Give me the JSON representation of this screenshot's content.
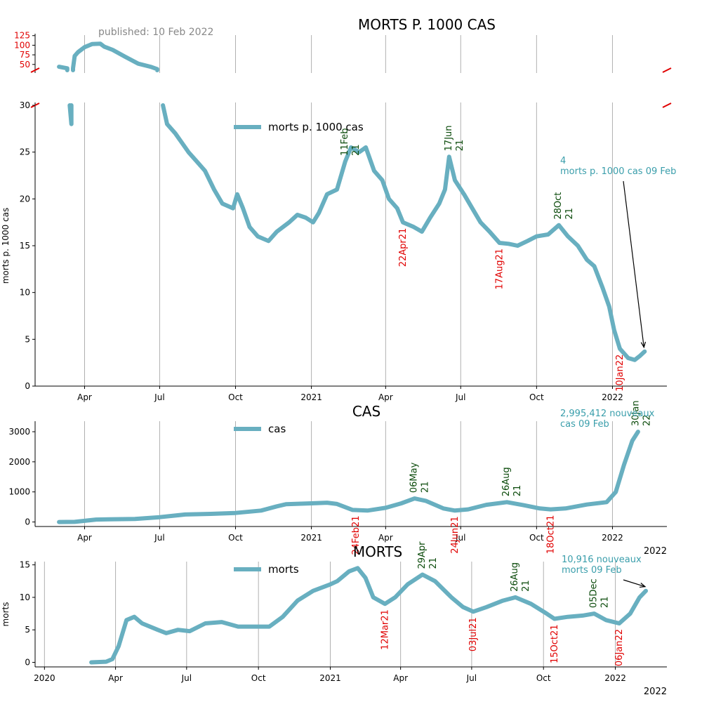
{
  "published": "published: 10 Feb 2022",
  "colors": {
    "line": "#68afc0",
    "peak": "#0a4a0a",
    "trough": "#e00000",
    "annotation": "#3a9eab",
    "tick": "#000000",
    "grid": "#b0b0b0",
    "inset_tick": "#e00000"
  },
  "chart_data": [
    {
      "id": "deaths_per_1000",
      "type": "line",
      "title": "MORTS P. 1000 CAS",
      "ylabel": "morts p. 1000 cas",
      "legend": "morts p. 1000 cas",
      "legend_placement": "top-center",
      "grid": "vertical",
      "broken_axis": true,
      "ylim_lower": [
        0,
        30
      ],
      "ylim_upper": [
        35,
        130
      ],
      "yticks_lower": [
        "0",
        "5",
        "10",
        "15",
        "20",
        "25",
        "30"
      ],
      "yticks_upper": [
        "50",
        "75",
        "100",
        "125"
      ],
      "xlim": [
        "2020-02-01",
        "2022-03-08"
      ],
      "xticks": [
        {
          "date": "2020-04-01",
          "label": "Apr"
        },
        {
          "date": "2020-07-01",
          "label": "Jul"
        },
        {
          "date": "2020-10-01",
          "label": "Oct"
        },
        {
          "date": "2021-01-01",
          "label": "2021"
        },
        {
          "date": "2021-04-01",
          "label": "Apr"
        },
        {
          "date": "2021-07-01",
          "label": "Jul"
        },
        {
          "date": "2021-10-01",
          "label": "Oct"
        },
        {
          "date": "2022-01-01",
          "label": "2022"
        }
      ],
      "series": [
        {
          "points": [
            [
              "2020-03-01",
              44
            ],
            [
              "2020-03-06",
              42
            ],
            [
              "2020-03-11",
              40
            ],
            [
              "2020-03-14",
              30
            ],
            [
              "2020-03-16",
              28
            ],
            [
              "2020-03-18",
              40
            ],
            [
              "2020-03-20",
              72
            ],
            [
              "2020-03-24",
              82
            ],
            [
              "2020-04-01",
              95
            ],
            [
              "2020-04-10",
              103
            ],
            [
              "2020-04-20",
              104
            ],
            [
              "2020-04-25",
              96
            ],
            [
              "2020-05-05",
              88
            ],
            [
              "2020-05-20",
              70
            ],
            [
              "2020-06-05",
              52
            ],
            [
              "2020-06-20",
              44
            ],
            [
              "2020-06-28",
              38
            ],
            [
              "2020-07-05",
              30
            ],
            [
              "2020-07-10",
              28
            ],
            [
              "2020-07-20",
              27
            ],
            [
              "2020-07-28",
              26
            ],
            [
              "2020-08-05",
              25
            ],
            [
              "2020-08-15",
              24
            ],
            [
              "2020-08-25",
              23
            ],
            [
              "2020-09-05",
              21
            ],
            [
              "2020-09-15",
              19.5
            ],
            [
              "2020-09-28",
              19
            ],
            [
              "2020-10-03",
              20.5
            ],
            [
              "2020-10-10",
              19
            ],
            [
              "2020-10-18",
              17
            ],
            [
              "2020-10-28",
              16
            ],
            [
              "2020-11-10",
              15.5
            ],
            [
              "2020-11-20",
              16.5
            ],
            [
              "2020-12-05",
              17.5
            ],
            [
              "2020-12-15",
              18.3
            ],
            [
              "2020-12-25",
              18
            ],
            [
              "2021-01-03",
              17.5
            ],
            [
              "2021-01-10",
              18.5
            ],
            [
              "2021-01-20",
              20.5
            ],
            [
              "2021-02-01",
              21
            ],
            [
              "2021-02-11",
              24
            ],
            [
              "2021-02-18",
              25.5
            ],
            [
              "2021-02-28",
              25
            ],
            [
              "2021-03-08",
              25.5
            ],
            [
              "2021-03-18",
              23
            ],
            [
              "2021-03-28",
              22
            ],
            [
              "2021-04-05",
              20
            ],
            [
              "2021-04-15",
              19
            ],
            [
              "2021-04-22",
              17.5
            ],
            [
              "2021-05-05",
              17
            ],
            [
              "2021-05-15",
              16.5
            ],
            [
              "2021-05-25",
              18
            ],
            [
              "2021-06-05",
              19.5
            ],
            [
              "2021-06-12",
              21
            ],
            [
              "2021-06-17",
              24.5
            ],
            [
              "2021-06-24",
              22
            ],
            [
              "2021-07-05",
              20.5
            ],
            [
              "2021-07-15",
              19
            ],
            [
              "2021-07-25",
              17.5
            ],
            [
              "2021-08-05",
              16.5
            ],
            [
              "2021-08-17",
              15.3
            ],
            [
              "2021-08-28",
              15.2
            ],
            [
              "2021-09-08",
              15
            ],
            [
              "2021-09-20",
              15.5
            ],
            [
              "2021-10-01",
              16
            ],
            [
              "2021-10-15",
              16.2
            ],
            [
              "2021-10-28",
              17.2
            ],
            [
              "2021-11-08",
              16
            ],
            [
              "2021-11-20",
              15
            ],
            [
              "2021-12-01",
              13.5
            ],
            [
              "2021-12-10",
              12.8
            ],
            [
              "2021-12-20",
              10.5
            ],
            [
              "2021-12-28",
              8.5
            ],
            [
              "2022-01-03",
              6
            ],
            [
              "2022-01-10",
              4
            ],
            [
              "2022-01-20",
              3
            ],
            [
              "2022-01-28",
              2.8
            ],
            [
              "2022-02-03",
              3.2
            ],
            [
              "2022-02-09",
              3.7
            ]
          ]
        }
      ],
      "peaks": [
        {
          "date": "2021-02-11",
          "label": "11Feb",
          "year": "21"
        },
        {
          "date": "2021-06-17",
          "label": "17Jun",
          "year": "21"
        },
        {
          "date": "2021-10-28",
          "label": "28Oct",
          "year": "21"
        }
      ],
      "troughs": [
        {
          "date": "2021-04-22",
          "label": "22Apr21"
        },
        {
          "date": "2021-08-17",
          "label": "17Aug21"
        },
        {
          "date": "2022-01-10",
          "label": "10Jan22"
        }
      ],
      "annotation": {
        "line1": "4",
        "line2": "morts p. 1000 cas 09 Feb"
      }
    },
    {
      "id": "cases",
      "type": "line",
      "title": "CAS",
      "legend": "cas",
      "legend_placement": "top-center",
      "grid": "vertical",
      "ylim": [
        -150,
        3350
      ],
      "yticks": [
        "0",
        "1000",
        "2000",
        "3000"
      ],
      "xlim": [
        "2020-02-01",
        "2022-03-08"
      ],
      "xticks": [
        {
          "date": "2020-04-01",
          "label": "Apr"
        },
        {
          "date": "2020-07-01",
          "label": "Jul"
        },
        {
          "date": "2020-10-01",
          "label": "Oct"
        },
        {
          "date": "2021-01-01",
          "label": "2021"
        },
        {
          "date": "2021-04-01",
          "label": "Apr"
        },
        {
          "date": "2021-07-01",
          "label": "Jul"
        },
        {
          "date": "2021-10-01",
          "label": "Oct"
        },
        {
          "date": "2022-01-01",
          "label": "2022"
        }
      ],
      "year_label": "2022",
      "series": [
        {
          "points": [
            [
              "2020-03-01",
              0
            ],
            [
              "2020-03-20",
              5
            ],
            [
              "2020-04-01",
              40
            ],
            [
              "2020-04-15",
              80
            ],
            [
              "2020-05-01",
              90
            ],
            [
              "2020-06-01",
              100
            ],
            [
              "2020-07-01",
              160
            ],
            [
              "2020-08-01",
              250
            ],
            [
              "2020-09-01",
              270
            ],
            [
              "2020-10-01",
              300
            ],
            [
              "2020-11-01",
              380
            ],
            [
              "2020-11-20",
              520
            ],
            [
              "2020-12-01",
              590
            ],
            [
              "2021-01-01",
              620
            ],
            [
              "2021-01-20",
              640
            ],
            [
              "2021-02-01",
              600
            ],
            [
              "2021-02-20",
              400
            ],
            [
              "2021-03-10",
              380
            ],
            [
              "2021-04-01",
              470
            ],
            [
              "2021-04-20",
              620
            ],
            [
              "2021-05-06",
              780
            ],
            [
              "2021-05-20",
              700
            ],
            [
              "2021-06-10",
              450
            ],
            [
              "2021-06-24",
              380
            ],
            [
              "2021-07-10",
              420
            ],
            [
              "2021-08-01",
              570
            ],
            [
              "2021-08-26",
              660
            ],
            [
              "2021-09-15",
              560
            ],
            [
              "2021-10-05",
              450
            ],
            [
              "2021-10-18",
              420
            ],
            [
              "2021-11-05",
              450
            ],
            [
              "2021-12-01",
              580
            ],
            [
              "2021-12-25",
              660
            ],
            [
              "2022-01-05",
              1000
            ],
            [
              "2022-01-15",
              1900
            ],
            [
              "2022-01-25",
              2700
            ],
            [
              "2022-02-01",
              3000
            ]
          ]
        }
      ],
      "peaks": [
        {
          "date": "2021-05-06",
          "label": "06May",
          "year": "21"
        },
        {
          "date": "2021-08-26",
          "label": "26Aug",
          "year": "21"
        },
        {
          "date": "2022-01-30",
          "label": "30Jan",
          "year": "22"
        }
      ],
      "troughs": [
        {
          "date": "2021-02-24",
          "label": "24Feb21"
        },
        {
          "date": "2021-06-24",
          "label": "24Jun21"
        },
        {
          "date": "2021-10-18",
          "label": "18Oct21"
        }
      ],
      "annotation": {
        "line1": "2,995,412 nouveaux",
        "line2": "cas 09 Feb"
      }
    },
    {
      "id": "deaths",
      "type": "line",
      "title": "MORTS",
      "ylabel": "morts",
      "legend": "morts",
      "legend_placement": "top-center",
      "grid": "vertical",
      "ylim": [
        -0.7,
        15.5
      ],
      "yticks": [
        "0",
        "5",
        "10",
        "15"
      ],
      "xlim": [
        "2019-12-20",
        "2022-03-08"
      ],
      "xticks": [
        {
          "date": "2020-01-01",
          "label": "2020"
        },
        {
          "date": "2020-04-01",
          "label": "Apr"
        },
        {
          "date": "2020-07-01",
          "label": "Jul"
        },
        {
          "date": "2020-10-01",
          "label": "Oct"
        },
        {
          "date": "2021-01-01",
          "label": "2021"
        },
        {
          "date": "2021-04-01",
          "label": "Apr"
        },
        {
          "date": "2021-07-01",
          "label": "Jul"
        },
        {
          "date": "2021-10-01",
          "label": "Oct"
        },
        {
          "date": "2022-01-01",
          "label": "2022"
        }
      ],
      "year_label": "2022",
      "series": [
        {
          "points": [
            [
              "2020-03-01",
              0
            ],
            [
              "2020-03-20",
              0.1
            ],
            [
              "2020-03-28",
              0.5
            ],
            [
              "2020-04-05",
              2.5
            ],
            [
              "2020-04-15",
              6.5
            ],
            [
              "2020-04-25",
              7
            ],
            [
              "2020-05-05",
              6
            ],
            [
              "2020-05-25",
              5
            ],
            [
              "2020-06-05",
              4.5
            ],
            [
              "2020-06-20",
              5
            ],
            [
              "2020-07-05",
              4.8
            ],
            [
              "2020-07-25",
              6
            ],
            [
              "2020-08-15",
              6.2
            ],
            [
              "2020-09-05",
              5.5
            ],
            [
              "2020-10-01",
              5.5
            ],
            [
              "2020-10-15",
              5.5
            ],
            [
              "2020-11-01",
              7
            ],
            [
              "2020-11-20",
              9.5
            ],
            [
              "2020-12-10",
              11
            ],
            [
              "2021-01-01",
              12
            ],
            [
              "2021-01-10",
              12.5
            ],
            [
              "2021-01-25",
              14
            ],
            [
              "2021-02-05",
              14.5
            ],
            [
              "2021-02-15",
              13
            ],
            [
              "2021-02-25",
              10
            ],
            [
              "2021-03-12",
              9
            ],
            [
              "2021-03-25",
              10
            ],
            [
              "2021-04-10",
              12
            ],
            [
              "2021-04-29",
              13.5
            ],
            [
              "2021-05-15",
              12.5
            ],
            [
              "2021-06-05",
              10
            ],
            [
              "2021-06-20",
              8.5
            ],
            [
              "2021-07-03",
              7.8
            ],
            [
              "2021-07-20",
              8.5
            ],
            [
              "2021-08-10",
              9.5
            ],
            [
              "2021-08-26",
              10
            ],
            [
              "2021-09-15",
              9
            ],
            [
              "2021-10-05",
              7.5
            ],
            [
              "2021-10-15",
              6.7
            ],
            [
              "2021-11-01",
              7
            ],
            [
              "2021-11-20",
              7.2
            ],
            [
              "2021-12-05",
              7.5
            ],
            [
              "2021-12-20",
              6.5
            ],
            [
              "2022-01-06",
              6
            ],
            [
              "2022-01-20",
              7.5
            ],
            [
              "2022-02-01",
              10
            ],
            [
              "2022-02-09",
              11
            ]
          ]
        }
      ],
      "peaks": [
        {
          "date": "2021-04-29",
          "label": "29Apr",
          "year": "21"
        },
        {
          "date": "2021-08-26",
          "label": "26Aug",
          "year": "21"
        },
        {
          "date": "2021-12-05",
          "label": "05Dec",
          "year": "21"
        }
      ],
      "troughs": [
        {
          "date": "2021-03-12",
          "label": "12Mar21"
        },
        {
          "date": "2021-07-03",
          "label": "03Jul21"
        },
        {
          "date": "2021-10-15",
          "label": "15Oct21"
        },
        {
          "date": "2022-01-06",
          "label": "06Jan22"
        }
      ],
      "annotation": {
        "line1": "10,916 nouveaux",
        "line2": "morts 09 Feb"
      }
    }
  ]
}
